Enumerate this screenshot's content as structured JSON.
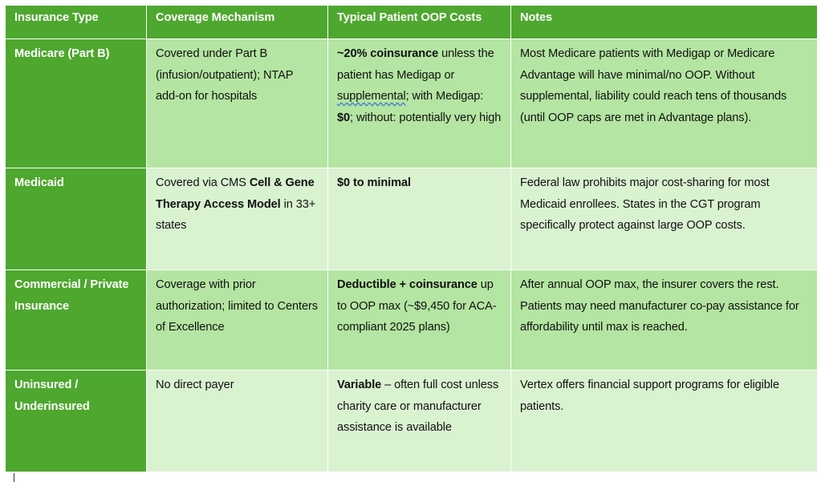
{
  "headers": [
    "Insurance Type",
    "Coverage Mechanism",
    "Typical Patient OOP Costs",
    "Notes"
  ],
  "rows": [
    {
      "type": "Medicare (Part B)",
      "coverage": [
        {
          "text": "Covered under Part B (infusion/outpatient); NTAP add-on for hospitals"
        }
      ],
      "costs": [
        {
          "text": "~20% coinsurance",
          "bold": true
        },
        {
          "text": " unless the patient has Medigap or "
        },
        {
          "text": "supplemental",
          "underline": true
        },
        {
          "text": "; with Medigap: "
        },
        {
          "text": "$0",
          "bold": true
        },
        {
          "text": "; without: potentially very high"
        }
      ],
      "notes": [
        {
          "text": "Most Medicare patients with Medigap or Medicare Advantage will have minimal/no OOP. Without supplemental, liability could reach tens of thousands (until OOP caps are met in Advantage plans)."
        }
      ]
    },
    {
      "type": "Medicaid",
      "coverage": [
        {
          "text": "Covered via CMS "
        },
        {
          "text": "Cell & Gene Therapy Access Model",
          "bold": true
        },
        {
          "text": " in 33+ states"
        }
      ],
      "costs": [
        {
          "text": "$0 to minimal",
          "bold": true
        }
      ],
      "notes": [
        {
          "text": "Federal law prohibits major cost-sharing for most Medicaid enrollees. States in the CGT program specifically protect against large OOP costs."
        }
      ]
    },
    {
      "type": "Commercial / Private Insurance",
      "coverage": [
        {
          "text": "Coverage with prior authorization; limited to Centers of Excellence"
        }
      ],
      "costs": [
        {
          "text": "Deductible + coinsurance",
          "bold": true
        },
        {
          "text": " up to OOP max (~$9,450 for ACA-compliant 2025 plans)"
        }
      ],
      "notes": [
        {
          "text": "After annual OOP max, the insurer covers the rest. Patients may need manufacturer co-pay assistance for affordability until max is reached."
        }
      ]
    },
    {
      "type": "Uninsured / Underinsured",
      "coverage": [
        {
          "text": "No direct payer"
        }
      ],
      "costs": [
        {
          "text": "Variable",
          "bold": true
        },
        {
          "text": " – often full cost unless charity care or manufacturer assistance is available"
        }
      ],
      "notes": [
        {
          "text": "Vertex offers financial support programs for eligible patients."
        }
      ]
    }
  ]
}
